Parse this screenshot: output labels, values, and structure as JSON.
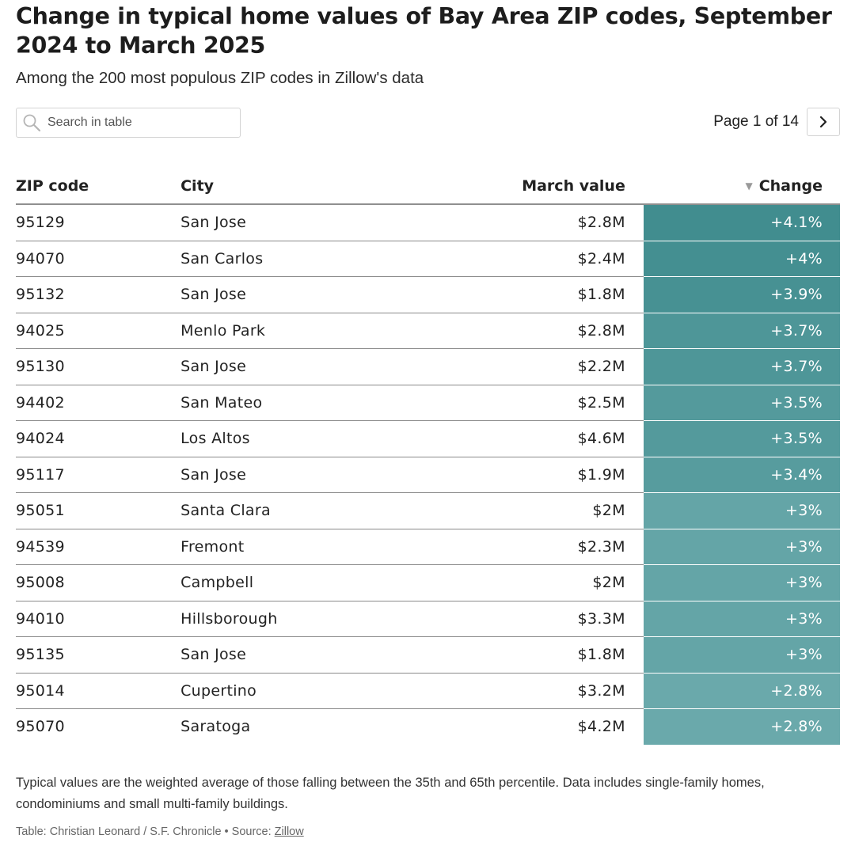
{
  "title": "Change in typical home values of Bay Area ZIP codes, September 2024 to March 2025",
  "subtitle": "Among the 200 most populous ZIP codes in Zillow's data",
  "search": {
    "placeholder": "Search in table",
    "icon": "search-icon"
  },
  "pagination": {
    "label": "Page 1 of 14",
    "next_icon": "chevron-right-icon"
  },
  "colors": {
    "change_high": "#418d8f",
    "change_low": "#6aa9ab"
  },
  "chart_data": {
    "type": "table",
    "columns": [
      "ZIP code",
      "City",
      "March value",
      "Change"
    ],
    "sort": {
      "column": "Change",
      "direction": "descending",
      "icon": "sort-descending-icon"
    },
    "rows": [
      {
        "zip": "95129",
        "city": "San Jose",
        "value": "$2.8M",
        "change": "+4.1%",
        "change_num": 4.1
      },
      {
        "zip": "94070",
        "city": "San Carlos",
        "value": "$2.4M",
        "change": "+4%",
        "change_num": 4.0
      },
      {
        "zip": "95132",
        "city": "San Jose",
        "value": "$1.8M",
        "change": "+3.9%",
        "change_num": 3.9
      },
      {
        "zip": "94025",
        "city": "Menlo Park",
        "value": "$2.8M",
        "change": "+3.7%",
        "change_num": 3.7
      },
      {
        "zip": "95130",
        "city": "San Jose",
        "value": "$2.2M",
        "change": "+3.7%",
        "change_num": 3.7
      },
      {
        "zip": "94402",
        "city": "San Mateo",
        "value": "$2.5M",
        "change": "+3.5%",
        "change_num": 3.5
      },
      {
        "zip": "94024",
        "city": "Los Altos",
        "value": "$4.6M",
        "change": "+3.5%",
        "change_num": 3.5
      },
      {
        "zip": "95117",
        "city": "San Jose",
        "value": "$1.9M",
        "change": "+3.4%",
        "change_num": 3.4
      },
      {
        "zip": "95051",
        "city": "Santa Clara",
        "value": "$2M",
        "change": "+3%",
        "change_num": 3.0
      },
      {
        "zip": "94539",
        "city": "Fremont",
        "value": "$2.3M",
        "change": "+3%",
        "change_num": 3.0
      },
      {
        "zip": "95008",
        "city": "Campbell",
        "value": "$2M",
        "change": "+3%",
        "change_num": 3.0
      },
      {
        "zip": "94010",
        "city": "Hillsborough",
        "value": "$3.3M",
        "change": "+3%",
        "change_num": 3.0
      },
      {
        "zip": "95135",
        "city": "San Jose",
        "value": "$1.8M",
        "change": "+3%",
        "change_num": 3.0
      },
      {
        "zip": "95014",
        "city": "Cupertino",
        "value": "$3.2M",
        "change": "+2.8%",
        "change_num": 2.8
      },
      {
        "zip": "95070",
        "city": "Saratoga",
        "value": "$4.2M",
        "change": "+2.8%",
        "change_num": 2.8
      }
    ]
  },
  "notes": "Typical values are the weighted average of those falling between the 35th and 65th percentile. Data includes single-family homes, condominiums and small multi-family buildings.",
  "source": {
    "prefix": "Table: Christian Leonard / S.F. Chronicle • Source: ",
    "link": "Zillow"
  }
}
